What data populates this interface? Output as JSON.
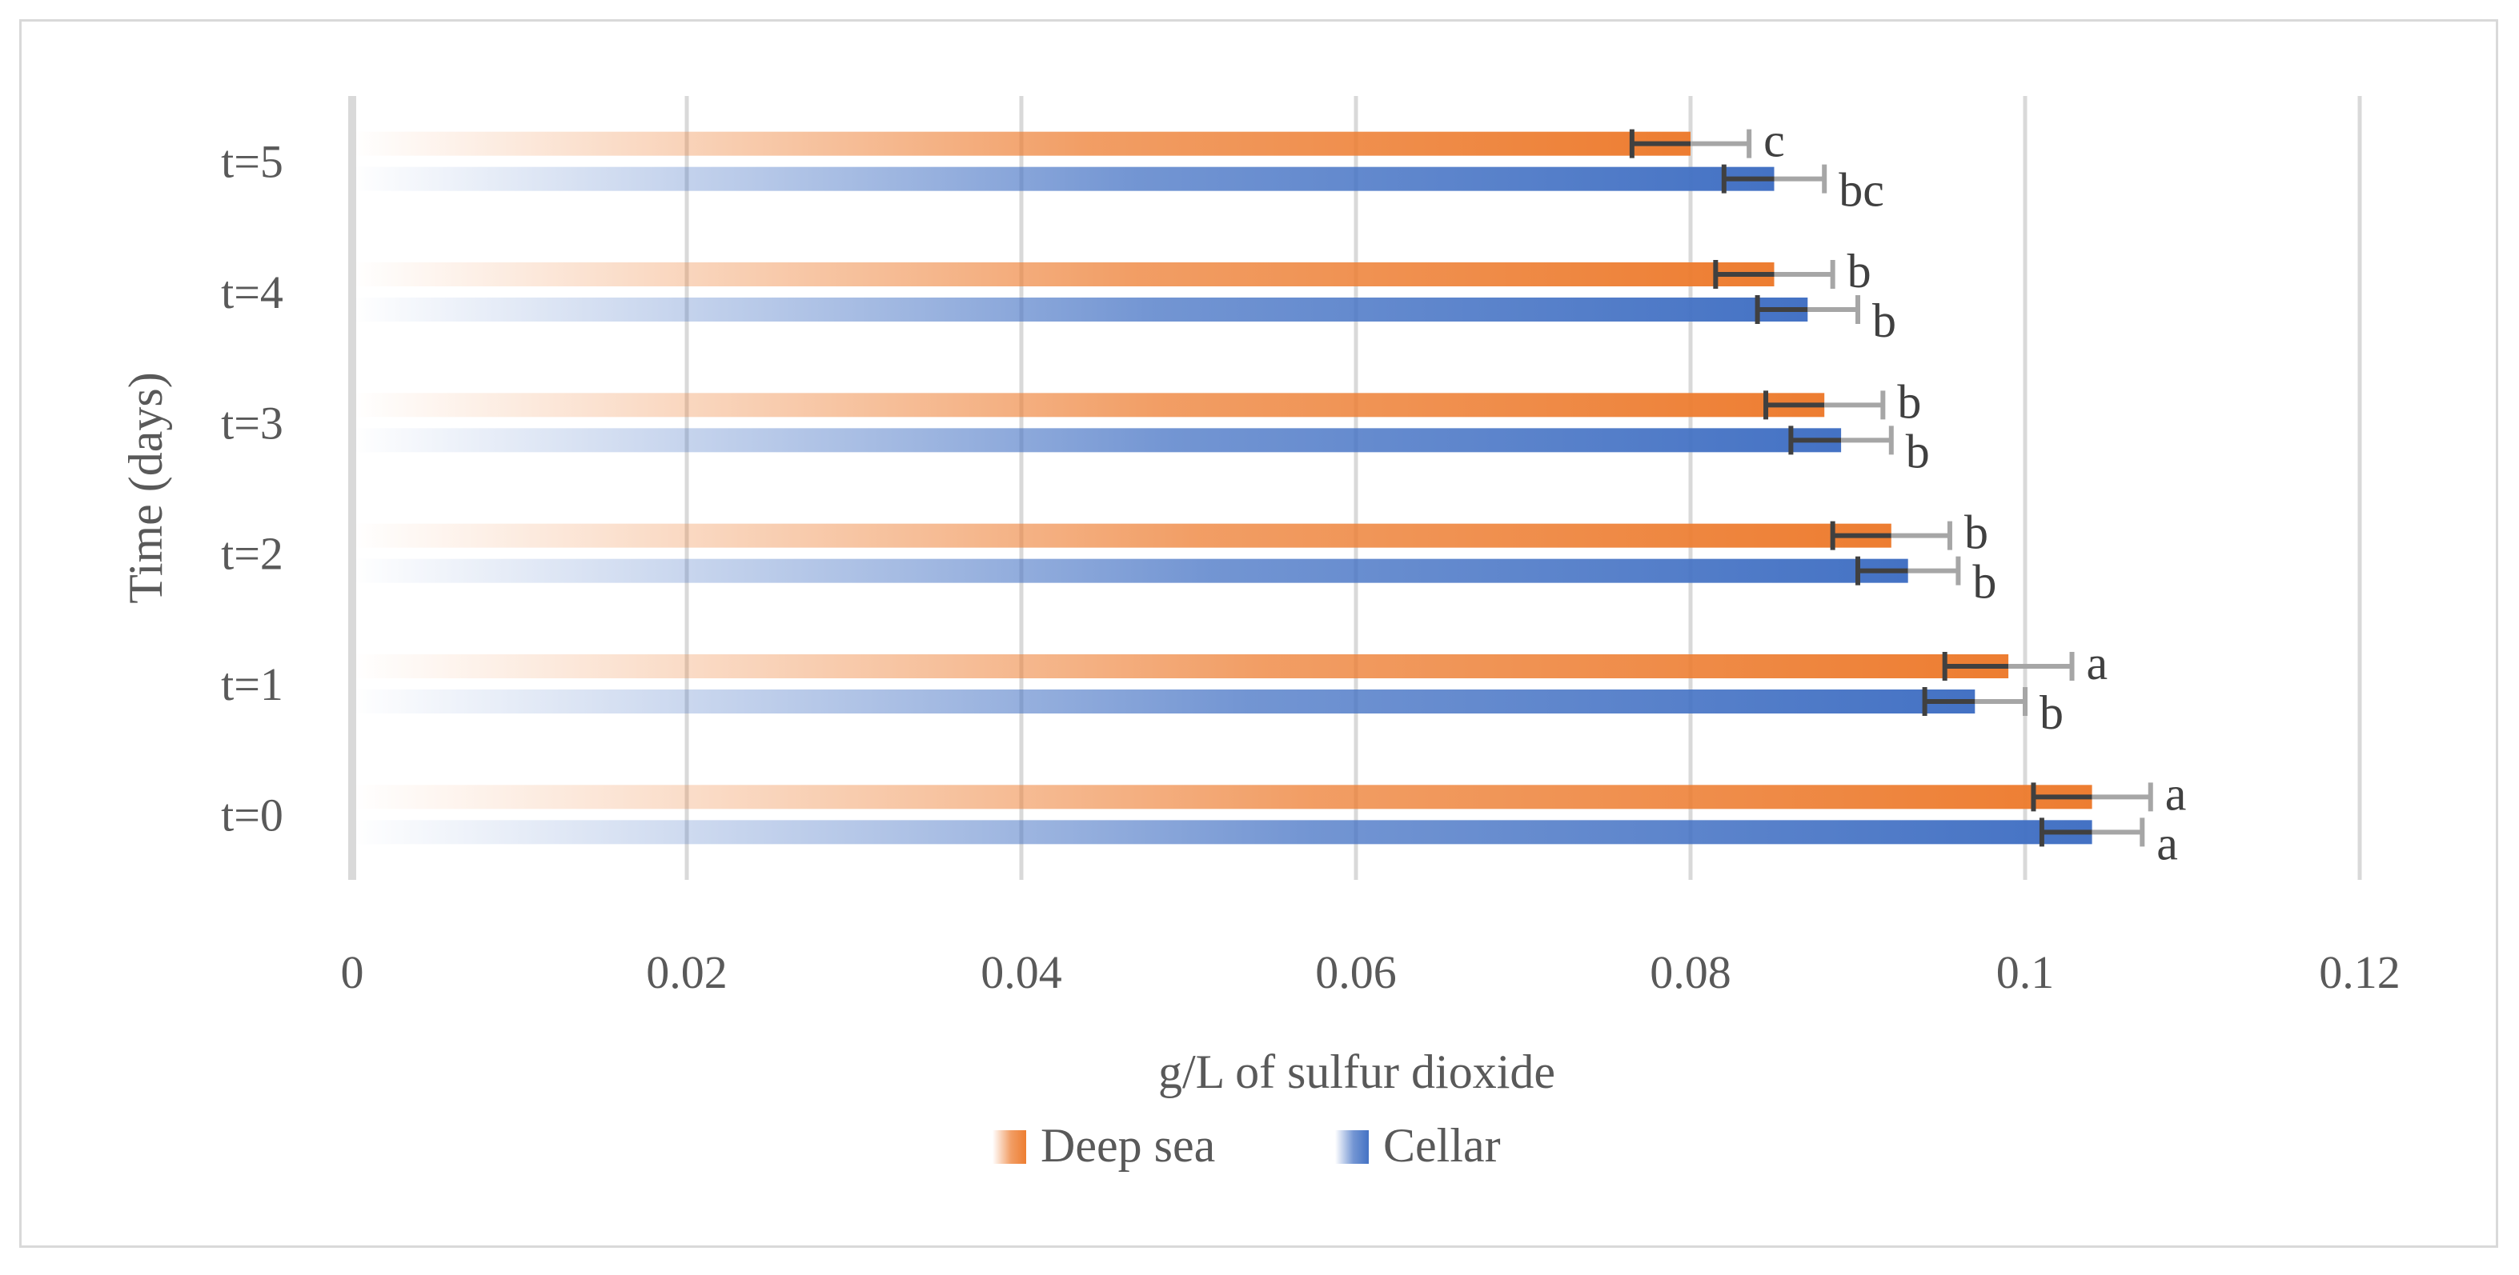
{
  "chart_data": {
    "type": "bar",
    "orientation": "horizontal",
    "categories": [
      "t=0",
      "t=1",
      "t=2",
      "t=3",
      "t=4",
      "t=5"
    ],
    "series": [
      {
        "name": "Deep sea",
        "color": "#ed7d31",
        "values": [
          0.104,
          0.099,
          0.092,
          0.088,
          0.085,
          0.08
        ],
        "errors": [
          0.0035,
          0.0038,
          0.0035,
          0.0035,
          0.0035,
          0.0035
        ],
        "significance": [
          "a",
          "a",
          "b",
          "b",
          "b",
          "c"
        ]
      },
      {
        "name": "Cellar",
        "color": "#4472c4",
        "values": [
          0.104,
          0.097,
          0.093,
          0.089,
          0.087,
          0.085
        ],
        "errors": [
          0.003,
          0.003,
          0.003,
          0.003,
          0.003,
          0.003
        ],
        "significance": [
          "a",
          "b",
          "b",
          "b",
          "b",
          "bc"
        ]
      }
    ],
    "xlabel": "g/L of sulfur dioxide",
    "ylabel": "Time (days)",
    "xlim": [
      0,
      0.12
    ],
    "xticks": [
      "0",
      "0.02",
      "0.04",
      "0.06",
      "0.08",
      "0.1",
      "0.12"
    ],
    "grid": true,
    "legend": "bottom"
  }
}
